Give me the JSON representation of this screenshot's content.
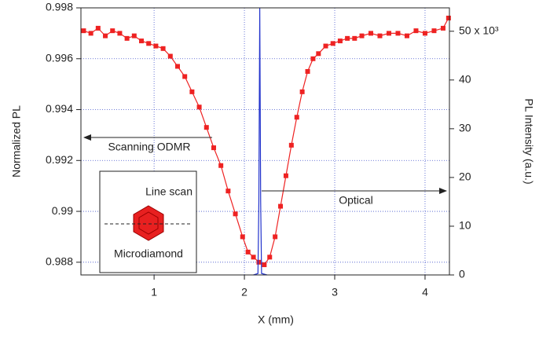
{
  "chart_data": {
    "type": "line",
    "xlabel": "X (mm)",
    "ylabel": "Normalized PL",
    "y2label": "PL Intensity (a.u.)",
    "xlim": [
      0.19,
      4.27
    ],
    "xticks": [
      1,
      2,
      3,
      4
    ],
    "ylim": [
      0.9875,
      0.998
    ],
    "yticks": [
      0.988,
      0.99,
      0.992,
      0.994,
      0.996,
      0.998
    ],
    "y2lim": [
      0,
      54.8
    ],
    "y2ticks": [
      0,
      10,
      20,
      30,
      40,
      {
        "value": 50,
        "label": "50 x 10³"
      }
    ],
    "grid": true,
    "series": [
      {
        "color": "#ee2222",
        "axis": "y",
        "x": [
          0.22,
          0.3,
          0.38,
          0.46,
          0.54,
          0.62,
          0.7,
          0.78,
          0.86,
          0.94,
          1.02,
          1.1,
          1.18,
          1.26,
          1.34,
          1.42,
          1.5,
          1.58,
          1.66,
          1.74,
          1.82,
          1.9,
          1.98,
          2.04,
          2.1,
          2.16,
          2.22,
          2.28,
          2.34,
          2.4,
          2.46,
          2.52,
          2.58,
          2.64,
          2.7,
          2.76,
          2.82,
          2.9,
          2.98,
          3.06,
          3.14,
          3.22,
          3.3,
          3.4,
          3.5,
          3.6,
          3.7,
          3.8,
          3.9,
          4.0,
          4.1,
          4.2,
          4.26
        ],
        "values": [
          0.9971,
          0.997,
          0.9972,
          0.9969,
          0.9971,
          0.997,
          0.9968,
          0.9969,
          0.9967,
          0.9966,
          0.9965,
          0.9964,
          0.9961,
          0.9957,
          0.9953,
          0.9947,
          0.9941,
          0.9933,
          0.9925,
          0.9918,
          0.9908,
          0.9899,
          0.989,
          0.9884,
          0.9882,
          0.988,
          0.9879,
          0.9882,
          0.989,
          0.9902,
          0.9914,
          0.9926,
          0.9937,
          0.9947,
          0.9955,
          0.996,
          0.9962,
          0.9965,
          0.9966,
          0.9967,
          0.9968,
          0.9968,
          0.9969,
          0.997,
          0.9969,
          0.997,
          0.997,
          0.9969,
          0.9971,
          0.997,
          0.9971,
          0.9972,
          0.9976
        ]
      },
      {
        "color": "#2233cc",
        "axis": "y2",
        "x": [
          2.1,
          2.15,
          2.16,
          2.17,
          2.18,
          2.19,
          2.25
        ],
        "values": [
          0,
          0.3,
          15,
          54.8,
          15,
          0.3,
          0
        ]
      }
    ],
    "annotations": [
      "Scanning ODMR",
      "Optical",
      "Line scan",
      "Microdiamond"
    ]
  }
}
